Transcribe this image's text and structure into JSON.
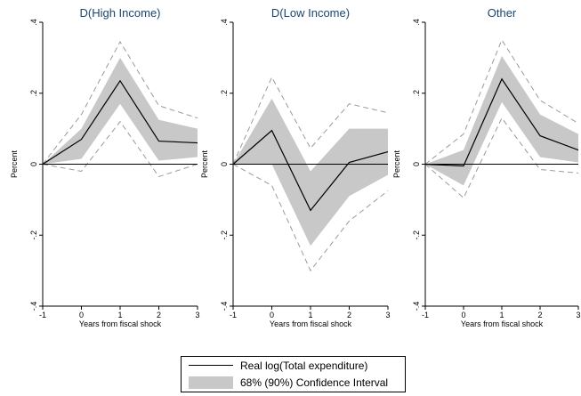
{
  "chart_data": [
    {
      "type": "line",
      "title": "D(High Income)",
      "xlabel": "Years from fiscal shock",
      "ylabel": "Percent",
      "x": [
        -1,
        0,
        1,
        2,
        3
      ],
      "xlim": [
        -1,
        3
      ],
      "ylim": [
        -0.4,
        0.4
      ],
      "xticks": [
        "-1",
        "0",
        "1",
        "2",
        "3"
      ],
      "yticks": [
        "-.4",
        "-.2",
        "0",
        ".2",
        ".4"
      ],
      "series": [
        {
          "name": "Real log(Total expenditure)",
          "values": [
            0,
            0.07,
            0.235,
            0.065,
            0.06
          ]
        },
        {
          "role": "ci68_upper",
          "values": [
            0,
            0.1,
            0.3,
            0.125,
            0.1
          ]
        },
        {
          "role": "ci68_lower",
          "values": [
            0,
            0.015,
            0.17,
            0.01,
            0.02
          ]
        },
        {
          "role": "ci90_upper",
          "values": [
            0,
            0.14,
            0.345,
            0.165,
            0.13
          ]
        },
        {
          "role": "ci90_lower",
          "values": [
            0,
            -0.02,
            0.12,
            -0.035,
            0
          ]
        }
      ]
    },
    {
      "type": "line",
      "title": "D(Low Income)",
      "xlabel": "Years from fiscal shock",
      "ylabel": "Percent",
      "x": [
        -1,
        0,
        1,
        2,
        3
      ],
      "xlim": [
        -1,
        3
      ],
      "ylim": [
        -0.4,
        0.4
      ],
      "xticks": [
        "-1",
        "0",
        "1",
        "2",
        "3"
      ],
      "yticks": [
        "-.4",
        "-.2",
        "0",
        ".2",
        ".4"
      ],
      "series": [
        {
          "name": "Real log(Total expenditure)",
          "values": [
            0,
            0.095,
            -0.13,
            0.005,
            0.035
          ]
        },
        {
          "role": "ci68_upper",
          "values": [
            0,
            0.185,
            -0.02,
            0.1,
            0.1
          ]
        },
        {
          "role": "ci68_lower",
          "values": [
            0,
            0.0,
            -0.23,
            -0.09,
            -0.03
          ]
        },
        {
          "role": "ci90_upper",
          "values": [
            0,
            0.245,
            0.045,
            0.17,
            0.145
          ]
        },
        {
          "role": "ci90_lower",
          "values": [
            0,
            -0.06,
            -0.3,
            -0.16,
            -0.075
          ]
        }
      ]
    },
    {
      "type": "line",
      "title": "Other",
      "xlabel": "Years from fiscal shock",
      "ylabel": "Percent",
      "x": [
        -1,
        0,
        1,
        2,
        3
      ],
      "xlim": [
        -1,
        3
      ],
      "ylim": [
        -0.4,
        0.4
      ],
      "xticks": [
        "-1",
        "0",
        "1",
        "2",
        "3"
      ],
      "yticks": [
        "-.4",
        "-.2",
        "0",
        ".2",
        ".4"
      ],
      "series": [
        {
          "name": "Real log(Total expenditure)",
          "values": [
            0,
            -0.005,
            0.24,
            0.08,
            0.04
          ]
        },
        {
          "role": "ci68_upper",
          "values": [
            0,
            0.04,
            0.305,
            0.14,
            0.085
          ]
        },
        {
          "role": "ci68_lower",
          "values": [
            0,
            -0.06,
            0.175,
            0.02,
            0.005
          ]
        },
        {
          "role": "ci90_upper",
          "values": [
            0,
            0.085,
            0.35,
            0.18,
            0.115
          ]
        },
        {
          "role": "ci90_lower",
          "values": [
            0,
            -0.095,
            0.13,
            -0.015,
            -0.025
          ]
        }
      ]
    }
  ],
  "legend": {
    "line_label": "Real log(Total expenditure)",
    "band_label": "68% (90%) Confidence Interval"
  },
  "colors": {
    "title": "#1a476f",
    "band": "#c8c8c8",
    "ci90_dash": "#9a9a9a",
    "line": "#000000"
  }
}
